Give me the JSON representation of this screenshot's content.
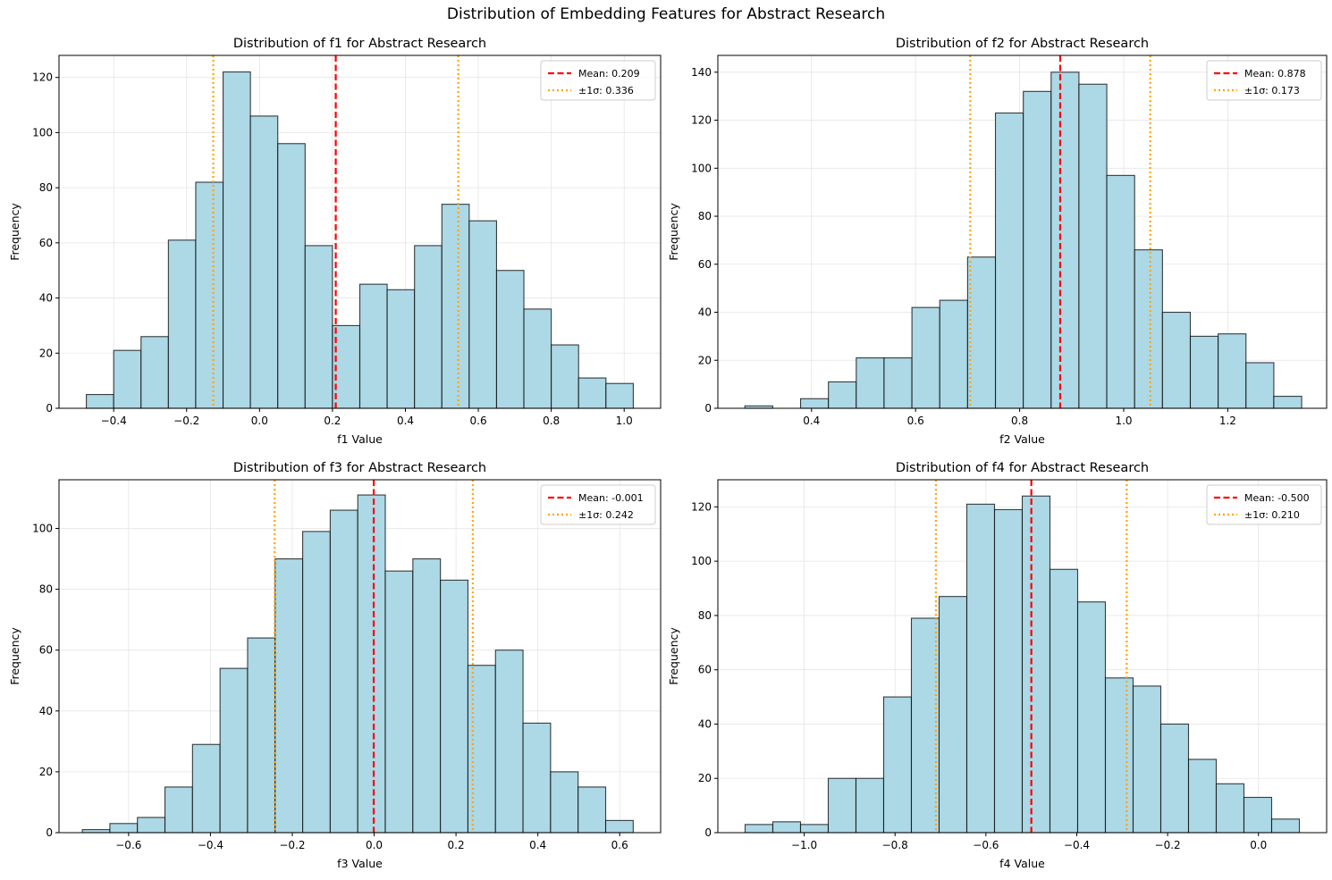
{
  "figure": {
    "suptitle": "Distribution of Embedding Features for Abstract Research"
  },
  "colors": {
    "bar_fill": "#ADD8E6",
    "bar_edge": "#000000",
    "mean_line": "#ff0000",
    "sigma_line": "#ffa500",
    "grid": "#e5e5e5"
  },
  "chart_data": [
    {
      "type": "bar",
      "title": "Distribution of f1 for Abstract Research",
      "xlabel": "f1 Value",
      "ylabel": "Frequency",
      "xlim": [
        -0.55,
        1.1
      ],
      "ylim": [
        0,
        128
      ],
      "xticks": [
        -0.4,
        -0.2,
        0.0,
        0.2,
        0.4,
        0.6,
        0.8,
        1.0
      ],
      "xticklabels": [
        "−0.4",
        "−0.2",
        "0.0",
        "0.2",
        "0.4",
        "0.6",
        "0.8",
        "1.0"
      ],
      "yticks": [
        0,
        20,
        40,
        60,
        80,
        100,
        120
      ],
      "bin_start": -0.475,
      "bin_width": 0.075,
      "values": [
        5,
        21,
        26,
        61,
        82,
        122,
        106,
        96,
        59,
        30,
        45,
        43,
        59,
        74,
        68,
        50,
        36,
        23,
        11,
        9
      ],
      "mean": 0.209,
      "sigma": 0.336,
      "legend": {
        "mean": "Mean: 0.209",
        "sigma": "±1σ: 0.336",
        "loc": "upper right"
      },
      "grid": true
    },
    {
      "type": "bar",
      "title": "Distribution of f2 for Abstract Research",
      "xlabel": "f2 Value",
      "ylabel": "Frequency",
      "xlim": [
        0.22,
        1.39
      ],
      "ylim": [
        0,
        147
      ],
      "xticks": [
        0.4,
        0.6,
        0.8,
        1.0,
        1.2
      ],
      "xticklabels": [
        "0.4",
        "0.6",
        "0.8",
        "1.0",
        "1.2"
      ],
      "yticks": [
        0,
        20,
        40,
        60,
        80,
        100,
        120,
        140
      ],
      "bin_start": 0.272,
      "bin_width": 0.0535,
      "values": [
        1,
        0,
        4,
        11,
        21,
        21,
        42,
        45,
        63,
        123,
        132,
        140,
        135,
        97,
        66,
        40,
        30,
        31,
        19,
        5
      ],
      "mean": 0.878,
      "sigma": 0.173,
      "legend": {
        "mean": "Mean: 0.878",
        "sigma": "±1σ: 0.173",
        "loc": "upper right"
      },
      "grid": true
    },
    {
      "type": "bar",
      "title": "Distribution of f3 for Abstract Research",
      "xlabel": "f3 Value",
      "ylabel": "Frequency",
      "xlim": [
        -0.77,
        0.7
      ],
      "ylim": [
        0,
        116
      ],
      "xticks": [
        -0.6,
        -0.4,
        -0.2,
        0.0,
        0.2,
        0.4,
        0.6
      ],
      "xticklabels": [
        "−0.6",
        "−0.4",
        "−0.2",
        "0.0",
        "0.2",
        "0.4",
        "0.6"
      ],
      "yticks": [
        0,
        20,
        40,
        60,
        80,
        100
      ],
      "bin_start": -0.713,
      "bin_width": 0.0673,
      "values": [
        1,
        3,
        5,
        15,
        29,
        54,
        64,
        90,
        99,
        106,
        111,
        86,
        90,
        83,
        55,
        60,
        36,
        20,
        15,
        4
      ],
      "mean": -0.001,
      "sigma": 0.242,
      "legend": {
        "mean": "Mean: -0.001",
        "sigma": "±1σ: 0.242",
        "loc": "upper right"
      },
      "grid": true
    },
    {
      "type": "bar",
      "title": "Distribution of f4 for Abstract Research",
      "xlabel": "f4 Value",
      "ylabel": "Frequency",
      "xlim": [
        -1.19,
        0.15
      ],
      "ylim": [
        0,
        130
      ],
      "xticks": [
        -1.0,
        -0.8,
        -0.6,
        -0.4,
        -0.2,
        0.0
      ],
      "xticklabels": [
        "−1.0",
        "−0.8",
        "−0.6",
        "−0.4",
        "−0.2",
        "0.0"
      ],
      "yticks": [
        0,
        20,
        40,
        60,
        80,
        100,
        120
      ],
      "bin_start": -1.13,
      "bin_width": 0.061,
      "values": [
        3,
        4,
        3,
        20,
        20,
        50,
        79,
        87,
        121,
        119,
        124,
        97,
        85,
        57,
        54,
        40,
        27,
        18,
        13,
        5
      ],
      "mean": -0.5,
      "sigma": 0.21,
      "legend": {
        "mean": "Mean: -0.500",
        "sigma": "±1σ: 0.210",
        "loc": "upper right"
      },
      "grid": true
    }
  ]
}
